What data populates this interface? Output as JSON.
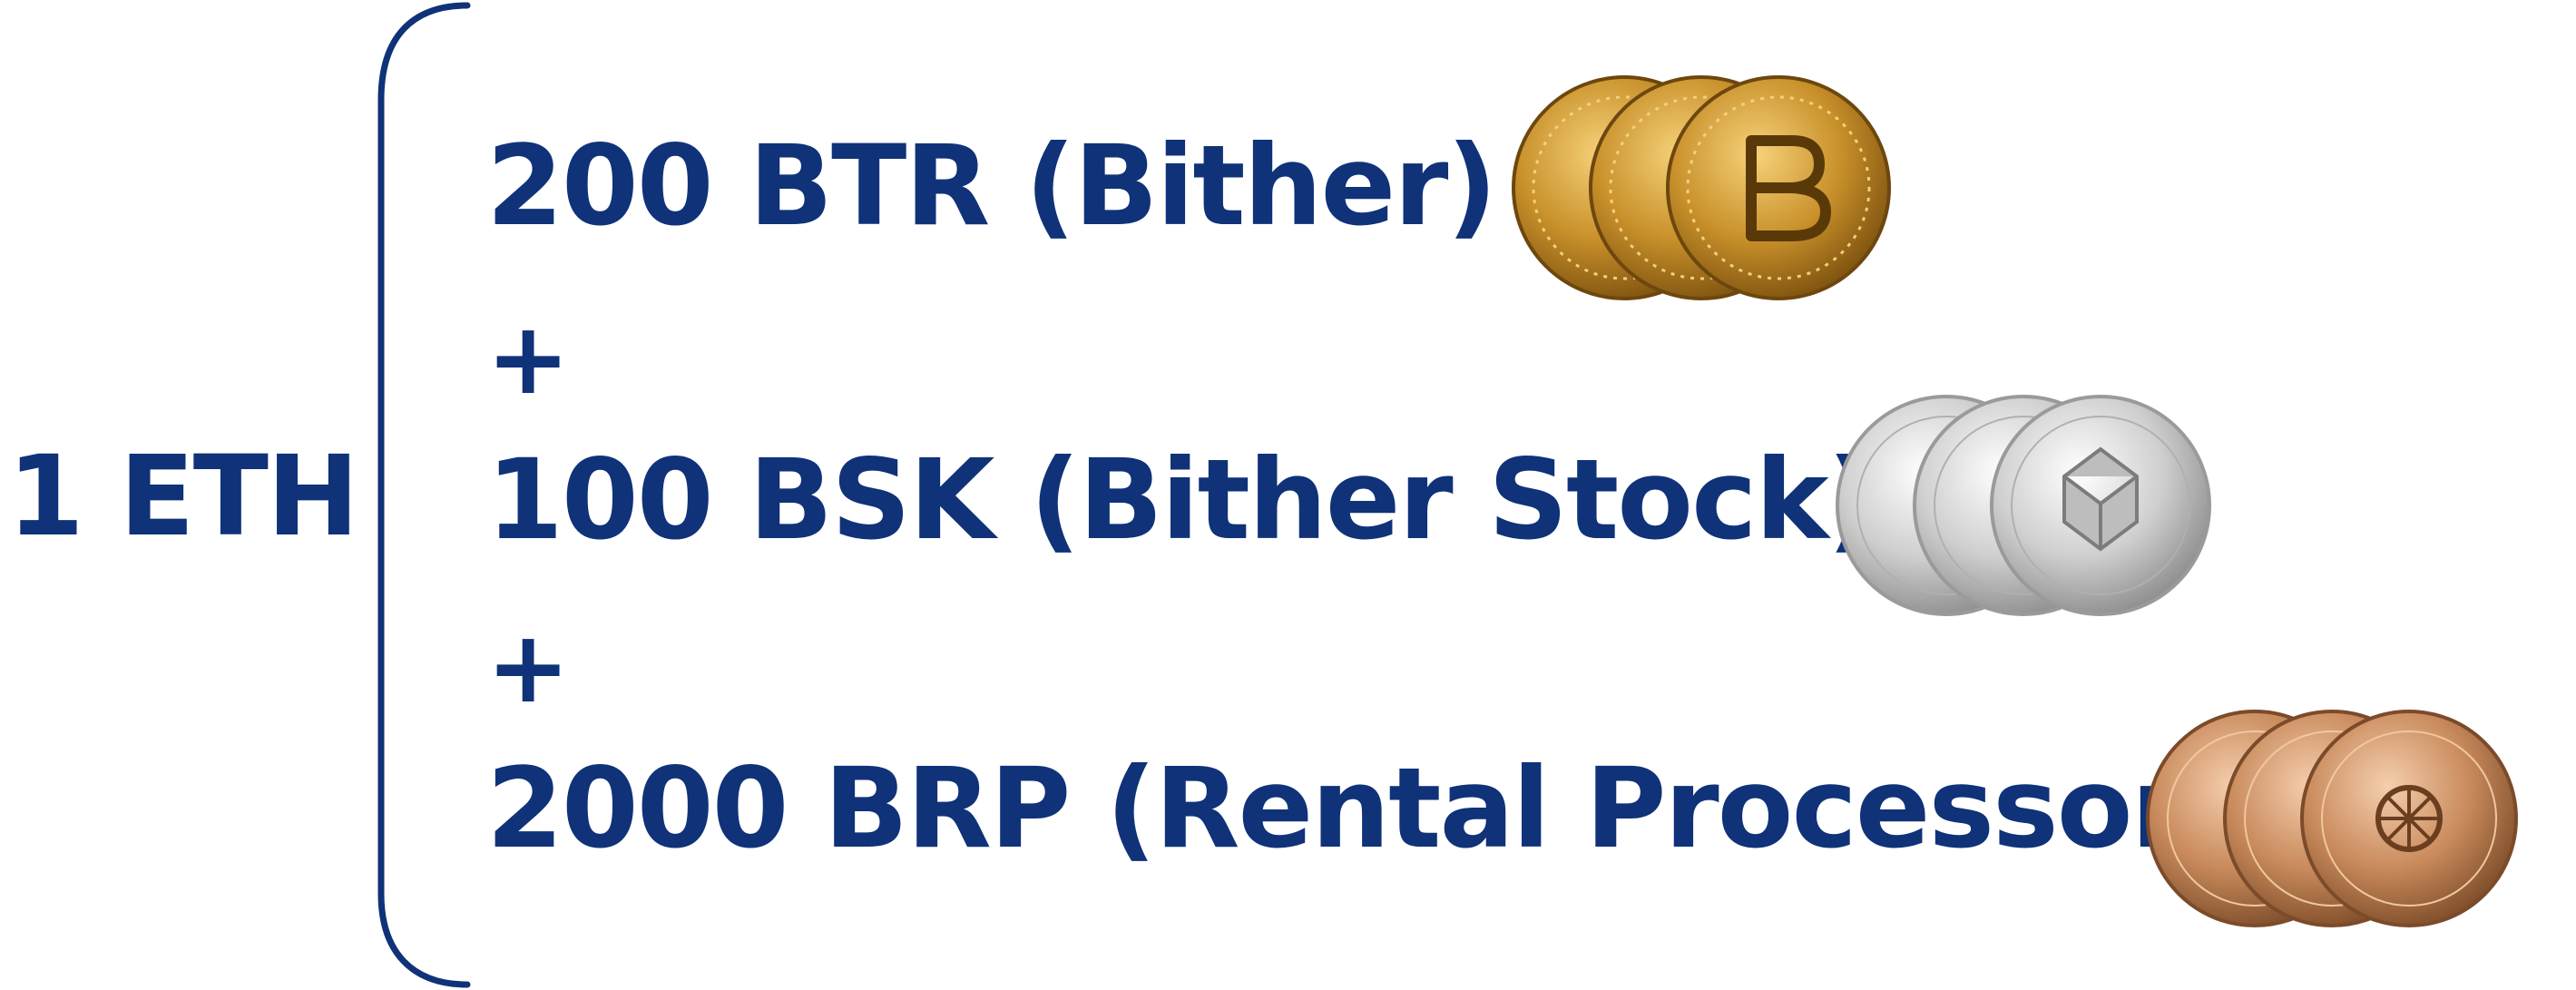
{
  "left_label": "1 ETH",
  "rows": [
    {
      "text": "200 BTR (Bither)",
      "coin_icon": "gold-coin-stack-icon"
    },
    {
      "text": "100 BSK (Bither Stock)",
      "coin_icon": "silver-coin-stack-icon"
    },
    {
      "text": "2000 BRP (Rental Processor)",
      "coin_icon": "bronze-coin-stack-icon"
    }
  ],
  "separators": [
    "+",
    "+"
  ],
  "colors": {
    "text": "#0f3279",
    "gold": "#c8902a",
    "silver": "#cfcfcf",
    "bronze": "#c98a5c"
  }
}
